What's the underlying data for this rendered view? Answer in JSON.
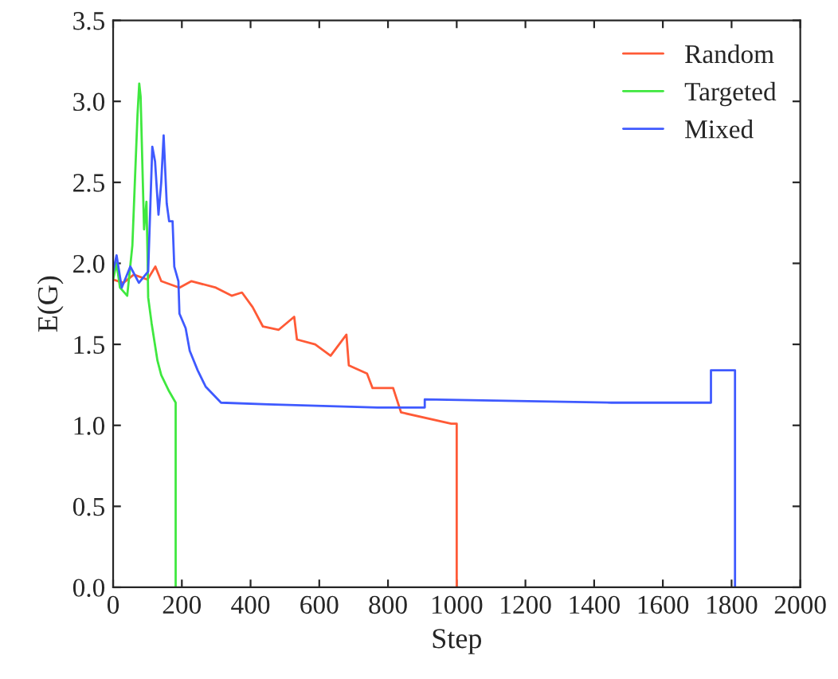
{
  "chart_data": {
    "type": "line",
    "xlabel": "Step",
    "ylabel": "E(G)",
    "xlim": [
      0,
      2000
    ],
    "ylim": [
      0,
      3.5
    ],
    "xticks": [
      0,
      200,
      400,
      600,
      800,
      1000,
      1200,
      1400,
      1600,
      1800,
      2000
    ],
    "yticks": [
      {
        "value": 0,
        "label": "0.0"
      },
      0.5,
      {
        "value": 1,
        "label": "1.0"
      },
      1.5,
      {
        "value": 2,
        "label": "2.0"
      },
      2.5,
      {
        "value": 3,
        "label": "3.0"
      },
      3.5
    ],
    "grid": false,
    "legend": "top right",
    "series": [
      {
        "name": "Random",
        "color": "#ff5a36",
        "x": [
          0,
          30,
          60,
          100,
          123,
          140,
          193,
          228,
          299,
          345,
          375,
          406,
          436,
          482,
          527,
          535,
          588,
          633,
          679,
          686,
          739,
          755,
          815,
          838,
          984,
          1000,
          1000
        ],
        "values": [
          1.9,
          1.88,
          1.93,
          1.9,
          1.98,
          1.89,
          1.85,
          1.89,
          1.85,
          1.8,
          1.82,
          1.73,
          1.61,
          1.59,
          1.67,
          1.53,
          1.5,
          1.43,
          1.56,
          1.37,
          1.32,
          1.23,
          1.23,
          1.08,
          1.01,
          1.01,
          0
        ]
      },
      {
        "name": "Targeted",
        "color": "#3fe83f",
        "x": [
          0,
          10,
          20,
          41,
          56,
          71,
          76,
          80,
          90,
          97,
          100,
          102,
          112,
          129,
          140,
          163,
          182,
          182
        ],
        "values": [
          1.9,
          2.0,
          1.85,
          1.8,
          2.11,
          2.92,
          3.11,
          3.03,
          2.21,
          2.38,
          2.07,
          1.79,
          1.63,
          1.4,
          1.31,
          1.21,
          1.14,
          0
        ]
      },
      {
        "name": "Mixed",
        "color": "#3f5aff",
        "x": [
          0,
          10,
          25,
          50,
          75,
          102,
          114,
          122,
          132,
          140,
          147,
          156,
          163,
          173,
          178,
          190,
          193,
          211,
          223,
          246,
          269,
          314,
          451,
          770,
          907,
          907,
          1450,
          1740,
          1740,
          1810,
          1810
        ],
        "values": [
          1.95,
          2.05,
          1.85,
          1.98,
          1.88,
          1.95,
          2.72,
          2.63,
          2.3,
          2.5,
          2.79,
          2.37,
          2.26,
          2.26,
          1.98,
          1.89,
          1.69,
          1.6,
          1.46,
          1.34,
          1.24,
          1.14,
          1.13,
          1.11,
          1.11,
          1.16,
          1.14,
          1.14,
          1.34,
          1.34,
          0
        ]
      }
    ]
  }
}
